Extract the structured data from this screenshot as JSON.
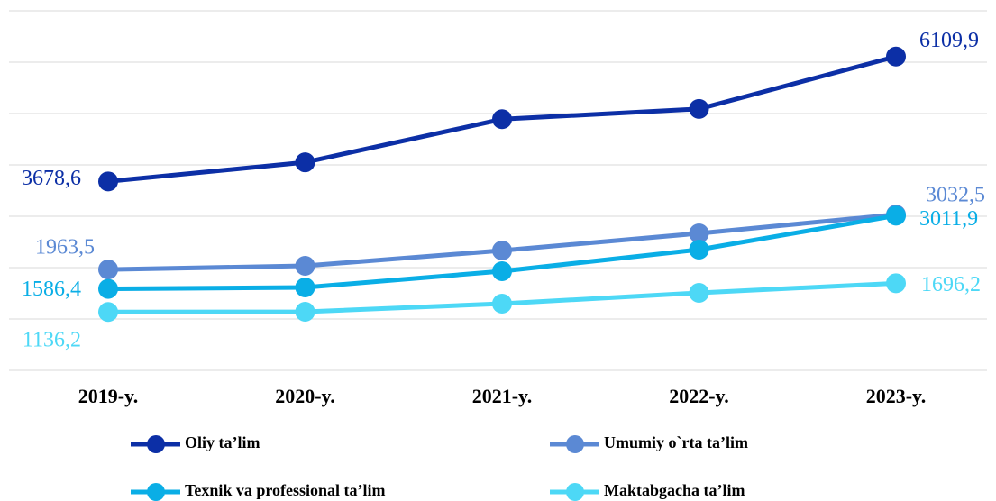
{
  "chart_data": {
    "type": "line",
    "categories": [
      "2019-y.",
      "2020-y.",
      "2021-y.",
      "2022-y.",
      "2023-y."
    ],
    "series": [
      {
        "name": "Oliy ta’lim",
        "color": "#0c2fa6",
        "values": [
          3678.6,
          4050,
          4890,
          5090,
          6109.9
        ],
        "value_labels": [
          "3678,6",
          null,
          null,
          null,
          "6109,9"
        ]
      },
      {
        "name": "Umumiy o`rta ta’lim",
        "color": "#5b89d4",
        "values": [
          1963.5,
          2035,
          2333,
          2667,
          3032.5
        ],
        "value_labels": [
          "1963,5",
          null,
          null,
          null,
          "3032,5"
        ]
      },
      {
        "name": "Texnik va professional ta’lim",
        "color": "#0aaee6",
        "values": [
          1586.4,
          1614,
          1930,
          2351,
          3011.9
        ],
        "value_labels": [
          "1586,4",
          null,
          null,
          null,
          "3011,9"
        ]
      },
      {
        "name": "Maktabgacha ta’lim",
        "color": "#4dd8f6",
        "values": [
          1136.2,
          1140,
          1298,
          1509,
          1696.2
        ],
        "value_labels": [
          "1136,2",
          null,
          null,
          null,
          "1696,2"
        ]
      }
    ],
    "ylim": [
      0,
      7000
    ],
    "yticks": [
      0,
      1000,
      2000,
      3000,
      4000,
      5000,
      6000,
      7000
    ],
    "grid": true
  }
}
